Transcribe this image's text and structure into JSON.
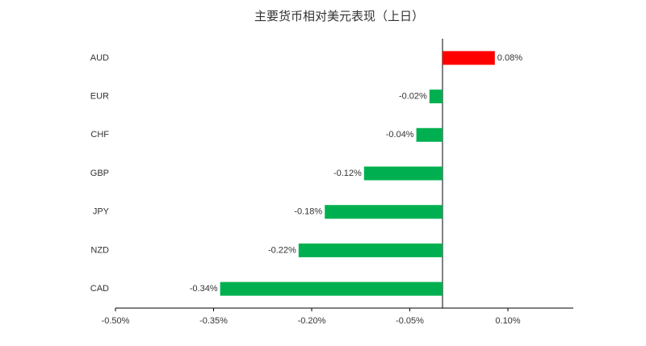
{
  "chart_data": {
    "type": "hbar",
    "title": "主要货币相对美元表现（上日）",
    "categories": [
      "AUD",
      "EUR",
      "CHF",
      "GBP",
      "JPY",
      "NZD",
      "CAD"
    ],
    "values": [
      0.08,
      -0.02,
      -0.04,
      -0.12,
      -0.18,
      -0.22,
      -0.34
    ],
    "value_labels": [
      "0.08%",
      "-0.02%",
      "-0.04%",
      "-0.12%",
      "-0.18%",
      "-0.22%",
      "-0.34%"
    ],
    "colors": [
      "#ff0000",
      "#00b050",
      "#00b050",
      "#00b050",
      "#00b050",
      "#00b050",
      "#00b050"
    ],
    "xlim": [
      -0.5,
      0.2
    ],
    "xticks": [
      {
        "value": -0.5,
        "label": "-0.50%"
      },
      {
        "value": -0.35,
        "label": "-0.35%"
      },
      {
        "value": -0.2,
        "label": "-0.20%"
      },
      {
        "value": -0.05,
        "label": "-0.05%"
      },
      {
        "value": 0.1,
        "label": "0.10%"
      }
    ]
  }
}
